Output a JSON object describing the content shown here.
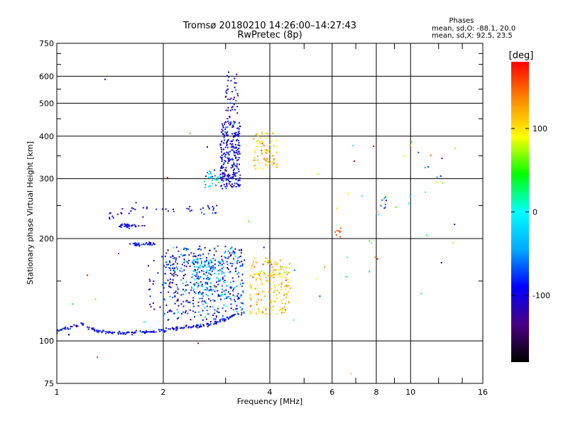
{
  "chart_data": {
    "type": "scatter",
    "title": "Tromsø 20180210 14:26:00–14:27:43",
    "subtitle": "RwPretec (8p)",
    "xlabel": "Frequency [MHz]",
    "ylabel": "Stationary phase Virtual Height [km]",
    "x_scale": "log",
    "y_scale": "log",
    "xlim": [
      1,
      16
    ],
    "ylim": [
      75,
      750
    ],
    "x_ticks": [
      1,
      2,
      4,
      6,
      8,
      10,
      16
    ],
    "x_minor_ticks": [
      3,
      5,
      7,
      9,
      12,
      14
    ],
    "y_ticks": [
      75,
      100,
      200,
      300,
      400,
      500,
      600,
      750
    ],
    "y_minor_ticks": [
      150,
      250,
      350,
      450,
      550,
      650,
      700
    ],
    "grid": true,
    "color_by": "phase",
    "phase_box": {
      "heading": "Phases",
      "line1": "mean, sd,O: -88.1, 20.0",
      "line2": "mean, sd,X:  92.5, 23.5"
    },
    "colorbar": {
      "unit": "[deg]",
      "range": [
        -180,
        180
      ],
      "ticks": [
        -100,
        0,
        100
      ],
      "stops": [
        "#000000",
        "#4b0082",
        "#0000ff",
        "#00aaff",
        "#00ffff",
        "#00ff00",
        "#ffff00",
        "#ff8800",
        "#ff0000"
      ]
    },
    "clusters": [
      {
        "shape": "trace",
        "f": [
          1.0,
          1.03,
          1.06,
          1.1,
          1.14,
          1.18,
          1.22,
          1.26,
          1.3,
          1.4,
          1.5,
          1.6,
          1.7,
          1.8,
          1.9,
          2.0,
          2.1,
          2.2,
          2.4,
          2.6,
          2.8,
          3.0,
          3.2
        ],
        "h": [
          106,
          108,
          109,
          110,
          111,
          112,
          110,
          108,
          107,
          106,
          105.5,
          105.5,
          106,
          106.5,
          107,
          108,
          108.5,
          109,
          110,
          111,
          113,
          116,
          120
        ],
        "n": 220,
        "spread": 0.006,
        "phase": [
          -95,
          20
        ],
        "color": null
      },
      {
        "shape": "box",
        "f": [
          2.0,
          3.4
        ],
        "h": [
          115,
          190
        ],
        "n": 420,
        "spread": 0,
        "phase": [
          -90,
          40
        ],
        "color": null
      },
      {
        "shape": "box",
        "f": [
          2.4,
          3.0
        ],
        "h": [
          140,
          175
        ],
        "n": 110,
        "spread": 0,
        "phase": [
          -40,
          25
        ],
        "color": null
      },
      {
        "shape": "box",
        "f": [
          2.9,
          3.3
        ],
        "h": [
          280,
          440
        ],
        "n": 260,
        "spread": 0,
        "phase": [
          -100,
          20
        ],
        "color": null
      },
      {
        "shape": "box",
        "f": [
          3.0,
          3.25
        ],
        "h": [
          440,
          620
        ],
        "n": 45,
        "spread": 0,
        "phase": [
          -100,
          20
        ],
        "color": null
      },
      {
        "shape": "box",
        "f": [
          2.6,
          2.9
        ],
        "h": [
          280,
          320
        ],
        "n": 30,
        "spread": 0,
        "phase": [
          -30,
          30
        ],
        "color": null
      },
      {
        "shape": "box",
        "f": [
          3.5,
          4.6
        ],
        "h": [
          120,
          175
        ],
        "n": 180,
        "spread": 0,
        "phase": [
          110,
          20
        ],
        "color": null
      },
      {
        "shape": "box",
        "f": [
          3.6,
          4.2
        ],
        "h": [
          320,
          410
        ],
        "n": 70,
        "spread": 0,
        "phase": [
          110,
          20
        ],
        "color": null
      },
      {
        "shape": "trace",
        "f": [
          1.5,
          1.6,
          1.7,
          1.8
        ],
        "h": [
          218,
          218,
          218,
          219
        ],
        "n": 35,
        "spread": 0.006,
        "phase": [
          -95,
          15
        ],
        "color": null
      },
      {
        "shape": "trace",
        "f": [
          1.6,
          1.7,
          1.8,
          1.9
        ],
        "h": [
          192,
          192,
          193,
          193
        ],
        "n": 35,
        "spread": 0.006,
        "phase": [
          -95,
          15
        ],
        "color": null
      },
      {
        "shape": "trace",
        "f": [
          1.4,
          1.6,
          1.8,
          2.0,
          2.3,
          2.6,
          2.9
        ],
        "h": [
          230,
          240,
          245,
          245,
          240,
          238,
          245
        ],
        "n": 45,
        "spread": 0.02,
        "phase": [
          -100,
          20
        ],
        "color": null
      },
      {
        "shape": "box",
        "f": [
          1.8,
          2.4
        ],
        "h": [
          120,
          180
        ],
        "n": 40,
        "spread": 0,
        "phase": [
          -100,
          20
        ],
        "color": null
      },
      {
        "shape": "box",
        "f": [
          5.4,
          14
        ],
        "h": [
          150,
          420
        ],
        "n": 30,
        "spread": 0,
        "phase": [
          80,
          90
        ],
        "color": null
      },
      {
        "shape": "box",
        "f": [
          6.1,
          6.4
        ],
        "h": [
          200,
          215
        ],
        "n": 8,
        "spread": 0,
        "phase": [
          150,
          10
        ],
        "color": null
      },
      {
        "shape": "box",
        "f": [
          8.2,
          8.6
        ],
        "h": [
          245,
          265
        ],
        "n": 8,
        "spread": 0,
        "phase": [
          -80,
          20
        ],
        "color": null
      },
      {
        "shape": "box",
        "f": [
          10.2,
          13
        ],
        "h": [
          300,
          380
        ],
        "n": 6,
        "spread": 0,
        "phase": [
          -80,
          30
        ],
        "color": null
      },
      {
        "shape": "box",
        "f": [
          1.0,
          16
        ],
        "h": [
          80,
          700
        ],
        "n": 25,
        "spread": 0,
        "phase": [
          30,
          110
        ],
        "color": null
      }
    ]
  }
}
